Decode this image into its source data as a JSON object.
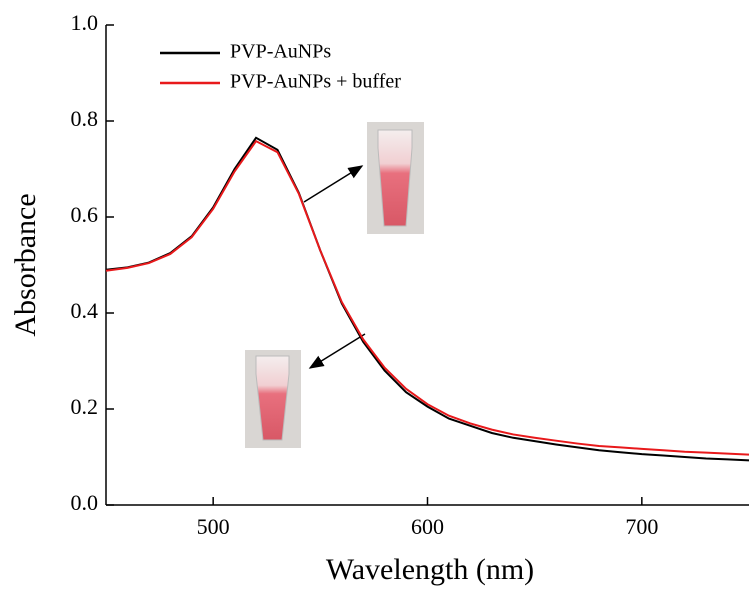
{
  "chart_data": {
    "type": "line",
    "x_label": "Wavelength (nm)",
    "y_label": "Absorbance",
    "xlim": [
      450,
      750
    ],
    "ylim": [
      0,
      1
    ],
    "xticks": [
      500,
      600,
      700
    ],
    "yticks": [
      {
        "value": 0,
        "label": "0.0"
      },
      0.2,
      0.4,
      0.6,
      0.8,
      {
        "value": 1,
        "label": "1.0"
      }
    ],
    "x": [
      450,
      460,
      470,
      480,
      490,
      500,
      510,
      520,
      530,
      540,
      550,
      560,
      570,
      580,
      590,
      600,
      610,
      620,
      630,
      640,
      650,
      660,
      670,
      680,
      690,
      700,
      710,
      720,
      730,
      740,
      750
    ],
    "series": [
      {
        "name": "PVP-AuNPs",
        "color": "#000000",
        "values": [
          0.49,
          0.495,
          0.505,
          0.525,
          0.56,
          0.62,
          0.7,
          0.765,
          0.74,
          0.65,
          0.53,
          0.42,
          0.34,
          0.28,
          0.235,
          0.205,
          0.18,
          0.165,
          0.15,
          0.14,
          0.133,
          0.126,
          0.12,
          0.114,
          0.11,
          0.106,
          0.103,
          0.1,
          0.097,
          0.095,
          0.093
        ]
      },
      {
        "name": "PVP-AuNPs + buffer",
        "color": "#e8191b",
        "values": [
          0.488,
          0.494,
          0.504,
          0.523,
          0.558,
          0.617,
          0.695,
          0.758,
          0.735,
          0.648,
          0.53,
          0.423,
          0.345,
          0.286,
          0.242,
          0.21,
          0.186,
          0.17,
          0.157,
          0.147,
          0.14,
          0.134,
          0.128,
          0.123,
          0.12,
          0.117,
          0.114,
          0.111,
          0.109,
          0.107,
          0.105
        ]
      }
    ]
  }
}
